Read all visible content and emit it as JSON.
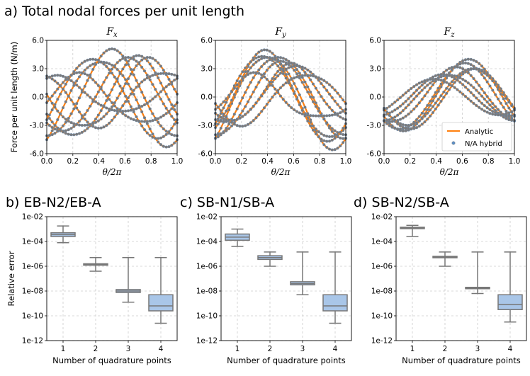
{
  "figure": {
    "top_label": "a) Total nodal forces per unit length",
    "colors": {
      "analytic": "#ff7f0e",
      "marker": "#7a7a7a",
      "marker_edge": "#5b8fc7",
      "box_fill": "#a9c6e8",
      "box_edge": "#777777",
      "grid": "#cccccc"
    }
  },
  "chart_data": [
    {
      "id": "fx",
      "type": "line",
      "title": "F",
      "title_sub": "x",
      "xlabel": "θ/2π",
      "ylabel": "Force per unit length (N/m)",
      "xlim": [
        0.0,
        1.0
      ],
      "ylim": [
        -6.0,
        6.0
      ],
      "xticks": [
        "0.0",
        "0.2",
        "0.4",
        "0.6",
        "0.8",
        "1.0"
      ],
      "yticks": [
        "6.0",
        "3.0",
        "0.0",
        "-3.0",
        "-6.0"
      ],
      "series": [
        {
          "A": 4.2,
          "B": -0.2,
          "C": 0.0,
          "phase": 0.35
        },
        {
          "A": 4.5,
          "B": -0.5,
          "C": -0.3,
          "phase": 0.42
        },
        {
          "A": 4.6,
          "B": 0.3,
          "C": 0.2,
          "phase": 0.5
        },
        {
          "A": 3.9,
          "B": 0.2,
          "C": 0.1,
          "phase": 0.62
        },
        {
          "A": 4.2,
          "B": 0.4,
          "C": -0.2,
          "phase": 0.7
        },
        {
          "A": 3.6,
          "B": 0.5,
          "C": 0.1,
          "phase": 0.78
        },
        {
          "A": 2.9,
          "B": -0.4,
          "C": 0.0,
          "phase": 0.9
        },
        {
          "A": 2.6,
          "B": 0.3,
          "C": -0.3,
          "phase": 0.25
        },
        {
          "A": 1.9,
          "B": 0.2,
          "C": 0.2,
          "phase": 0.08
        }
      ]
    },
    {
      "id": "fy",
      "type": "line",
      "title": "F",
      "title_sub": "y",
      "xlabel": "θ/2π",
      "ylabel": "",
      "xlim": [
        0.0,
        1.0
      ],
      "ylim": [
        -6.0,
        6.0
      ],
      "xticks": [
        "0.0",
        "0.2",
        "0.4",
        "0.6",
        "0.8",
        "1.0"
      ],
      "yticks": [
        "6.0",
        "3.0",
        "0.0",
        "-3.0",
        "-6.0"
      ],
      "series": [
        {
          "A": 4.9,
          "B": -0.4,
          "C": -0.3,
          "phase": 0.4
        },
        {
          "A": 4.6,
          "B": 0.3,
          "C": 0.1,
          "phase": 0.38
        },
        {
          "A": 4.3,
          "B": -0.3,
          "C": 0.2,
          "phase": 0.48
        },
        {
          "A": 3.9,
          "B": 0.2,
          "C": -0.3,
          "phase": 0.5
        },
        {
          "A": 4.5,
          "B": -0.2,
          "C": 0.0,
          "phase": 0.36
        },
        {
          "A": 3.1,
          "B": 0.4,
          "C": 0.1,
          "phase": 0.58
        },
        {
          "A": 2.9,
          "B": 0.0,
          "C": 0.4,
          "phase": 0.62
        },
        {
          "A": 2.3,
          "B": 0.5,
          "C": -0.2,
          "phase": 0.3
        },
        {
          "A": 2.7,
          "B": -0.3,
          "C": -0.1,
          "phase": 0.7
        }
      ]
    },
    {
      "id": "fz",
      "type": "line",
      "title": "F",
      "title_sub": "z",
      "xlabel": "θ/2π",
      "ylabel": "",
      "xlim": [
        0.0,
        1.0
      ],
      "ylim": [
        -6.0,
        6.0
      ],
      "xticks": [
        "0.0",
        "0.2",
        "0.4",
        "0.6",
        "0.8",
        "1.0"
      ],
      "yticks": [
        "6.0",
        "3.0",
        "0.0",
        "-3.0",
        "-6.0"
      ],
      "legend": {
        "position": "lower-right",
        "entries": [
          "Analytic",
          "N/A hybrid"
        ]
      },
      "series": [
        {
          "A": 3.8,
          "B": 0.0,
          "C": 0.2,
          "phase": 0.65
        },
        {
          "A": 3.5,
          "B": 0.1,
          "C": 0.0,
          "phase": 0.62
        },
        {
          "A": 3.2,
          "B": 0.0,
          "C": -0.2,
          "phase": 0.7
        },
        {
          "A": 2.9,
          "B": 0.2,
          "C": 0.1,
          "phase": 0.55
        },
        {
          "A": 2.4,
          "B": -0.1,
          "C": 0.0,
          "phase": 0.5
        },
        {
          "A": 2.2,
          "B": 0.1,
          "C": 0.1,
          "phase": 0.45
        },
        {
          "A": 1.9,
          "B": 0.0,
          "C": 0.0,
          "phase": 0.38
        },
        {
          "A": 3.0,
          "B": 0.0,
          "C": 0.0,
          "phase": 0.68
        }
      ]
    },
    {
      "id": "eb",
      "type": "box",
      "panel_label": "b) EB-N2/EB-A",
      "xlabel": "Number of quadrature points",
      "ylabel": "Relative error",
      "categories": [
        "1",
        "2",
        "3",
        "4"
      ],
      "yscale": "log",
      "ylim_exp": [
        -12,
        -2
      ],
      "yticks": [
        "1e-02",
        "1e-04",
        "1e-06",
        "1e-08",
        "1e-10",
        "1e-12"
      ],
      "boxes": [
        {
          "min": -4.1,
          "q1": -3.6,
          "median": -3.45,
          "q3": -3.3,
          "max": -2.75
        },
        {
          "min": -6.4,
          "q1": -5.9,
          "median": -5.85,
          "q3": -5.8,
          "max": -5.3
        },
        {
          "min": -8.9,
          "q1": -8.12,
          "median": -8.0,
          "q3": -7.88,
          "max": -5.3
        },
        {
          "min": -10.6,
          "q1": -9.6,
          "median": -9.2,
          "q3": -8.3,
          "max": -5.3
        }
      ]
    },
    {
      "id": "sbn1",
      "type": "box",
      "panel_label": "c) SB-N1/SB-A",
      "xlabel": "Number of quadrature points",
      "ylabel": "",
      "categories": [
        "1",
        "2",
        "3",
        "4"
      ],
      "yscale": "log",
      "ylim_exp": [
        -12,
        -2
      ],
      "yticks": [
        "1e-02",
        "1e-04",
        "1e-06",
        "1e-08",
        "1e-10",
        "1e-12"
      ],
      "boxes": [
        {
          "min": -4.4,
          "q1": -3.9,
          "median": -3.65,
          "q3": -3.4,
          "max": -3.0
        },
        {
          "min": -6.0,
          "q1": -5.45,
          "median": -5.3,
          "q3": -5.15,
          "max": -4.85
        },
        {
          "min": -8.3,
          "q1": -7.5,
          "median": -7.4,
          "q3": -7.25,
          "max": -4.85
        },
        {
          "min": -10.6,
          "q1": -9.6,
          "median": -9.2,
          "q3": -8.3,
          "max": -4.85
        }
      ]
    },
    {
      "id": "sbn2",
      "type": "box",
      "panel_label": "d) SB-N2/SB-A",
      "xlabel": "Number of quadrature points",
      "ylabel": "",
      "categories": [
        "1",
        "2",
        "3",
        "4"
      ],
      "yscale": "log",
      "ylim_exp": [
        -12,
        -2
      ],
      "yticks": [
        "1e-02",
        "1e-04",
        "1e-06",
        "1e-08",
        "1e-10",
        "1e-12"
      ],
      "boxes": [
        {
          "min": -3.6,
          "q1": -2.95,
          "median": -2.9,
          "q3": -2.85,
          "max": -2.7
        },
        {
          "min": -6.0,
          "q1": -5.3,
          "median": -5.25,
          "q3": -5.2,
          "max": -4.85
        },
        {
          "min": -8.2,
          "q1": -7.8,
          "median": -7.75,
          "q3": -7.7,
          "max": -4.85
        },
        {
          "min": -10.5,
          "q1": -9.5,
          "median": -9.1,
          "q3": -8.3,
          "max": -4.85
        }
      ]
    }
  ]
}
